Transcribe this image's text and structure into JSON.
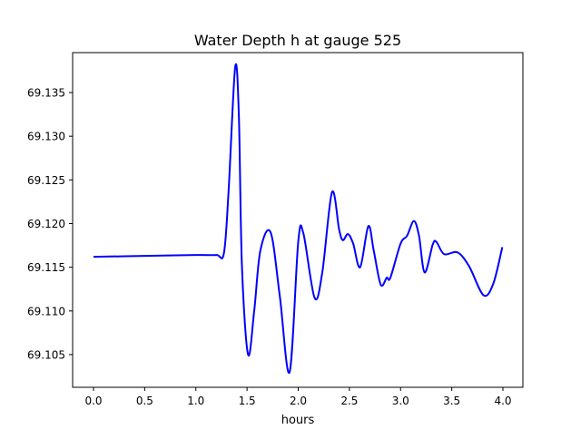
{
  "chart_data": {
    "type": "line",
    "title": "Water Depth h at gauge 525",
    "xlabel": "hours",
    "ylabel": "",
    "xlim": [
      -0.204,
      4.195
    ],
    "ylim": [
      69.10126,
      69.13957
    ],
    "xticks": [
      0.0,
      0.5,
      1.0,
      1.5,
      2.0,
      2.5,
      3.0,
      3.5,
      4.0
    ],
    "xtick_labels": [
      "0.0",
      "0.5",
      "1.0",
      "1.5",
      "2.0",
      "2.5",
      "3.0",
      "3.5",
      "4.0"
    ],
    "yticks": [
      69.105,
      69.11,
      69.115,
      69.12,
      69.125,
      69.13,
      69.135
    ],
    "ytick_labels": [
      "69.105",
      "69.110",
      "69.115",
      "69.120",
      "69.125",
      "69.130",
      "69.135"
    ],
    "grid": false,
    "series": [
      {
        "name": "h",
        "color": "#0000ff",
        "x": [
          0.0,
          0.5,
          1.0,
          1.2,
          1.274,
          1.32,
          1.384,
          1.42,
          1.45,
          1.51,
          1.57,
          1.63,
          1.73,
          1.82,
          1.916,
          2.0,
          2.05,
          2.16,
          2.235,
          2.33,
          2.4,
          2.436,
          2.486,
          2.537,
          2.605,
          2.685,
          2.738,
          2.806,
          2.865,
          2.9,
          3.0,
          3.063,
          3.13,
          3.18,
          3.235,
          3.314,
          3.35,
          3.426,
          3.556,
          3.67,
          3.81,
          3.905,
          3.994
        ],
        "y": [
          69.1162,
          69.1163,
          69.1164,
          69.1164,
          69.1166,
          69.1238,
          69.1379,
          69.1324,
          69.1152,
          69.105,
          69.11,
          69.1169,
          69.119,
          69.1117,
          69.103,
          69.1179,
          69.1189,
          69.1115,
          69.1144,
          69.1236,
          69.1193,
          69.1181,
          69.1188,
          69.1177,
          69.115,
          69.1197,
          69.1169,
          69.113,
          69.1138,
          69.1138,
          69.1177,
          69.1186,
          69.1203,
          69.1186,
          69.1144,
          69.1176,
          69.1179,
          69.1165,
          69.1167,
          69.1151,
          69.1118,
          69.1131,
          69.1173
        ]
      }
    ]
  }
}
